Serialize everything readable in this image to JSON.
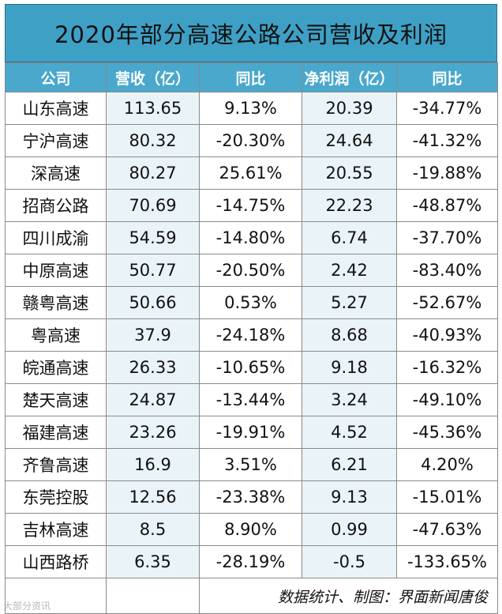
{
  "title": "2020年部分高速公路公司营收及利润",
  "headers": [
    "公司",
    "营收（亿）",
    "同比",
    "净利润（亿）",
    "同比"
  ],
  "rows": [
    [
      "山东高速",
      "113.65",
      "9.13%",
      "20.39",
      "-34.77%"
    ],
    [
      "宁沪高速",
      "80.32",
      "-20.30%",
      "24.64",
      "-41.32%"
    ],
    [
      "深高速",
      "80.27",
      "25.61%",
      "20.55",
      "-19.88%"
    ],
    [
      "招商公路",
      "70.69",
      "-14.75%",
      "22.23",
      "-48.87%"
    ],
    [
      "四川成渝",
      "54.59",
      "-14.80%",
      "6.74",
      "-37.70%"
    ],
    [
      "中原高速",
      "50.77",
      "-20.50%",
      "2.42",
      "-83.40%"
    ],
    [
      "赣粤高速",
      "50.66",
      "0.53%",
      "5.27",
      "-52.67%"
    ],
    [
      "粤高速",
      "37.9",
      "-24.18%",
      "8.68",
      "-40.93%"
    ],
    [
      "皖通高速",
      "26.33",
      "-10.65%",
      "9.18",
      "-16.32%"
    ],
    [
      "楚天高速",
      "24.87",
      "-13.44%",
      "3.24",
      "-49.10%"
    ],
    [
      "福建高速",
      "23.26",
      "-19.91%",
      "4.52",
      "-45.36%"
    ],
    [
      "齐鲁高速",
      "16.9",
      "3.51%",
      "6.21",
      "4.20%"
    ],
    [
      "东莞控股",
      "12.56",
      "-23.38%",
      "9.13",
      "-15.01%"
    ],
    [
      "吉林高速",
      "8.5",
      "8.90%",
      "0.99",
      "-47.63%"
    ],
    [
      "山西路桥",
      "6.35",
      "-28.19%",
      "-0.5",
      "-133.65%"
    ]
  ],
  "footnote": "数据统计、制图：界面新闻唐俊",
  "watermark": "大部分资讯",
  "colors": {
    "title_bg": "#3fa0c6",
    "header_bg": "#49a8cc",
    "alt_col_bg": "#eaf3f8"
  }
}
